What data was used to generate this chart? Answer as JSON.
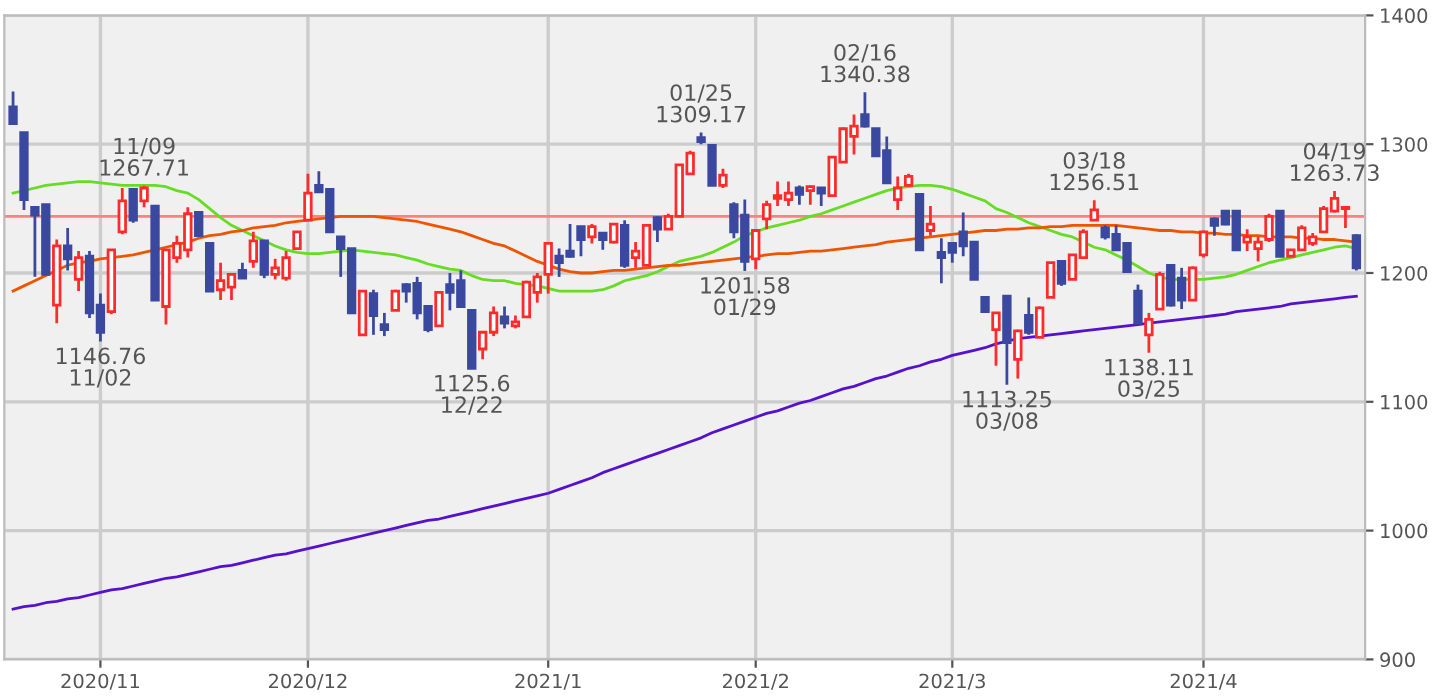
{
  "chart_data": {
    "type": "candlestick",
    "categories": [
      null,
      null,
      null,
      null,
      null,
      null,
      null,
      null,
      "2020/11",
      null,
      null,
      null,
      null,
      null,
      null,
      null,
      null,
      null,
      null,
      null,
      null,
      null,
      null,
      null,
      null,
      null,
      null,
      "2020/12",
      null,
      null,
      null,
      null,
      null,
      null,
      null,
      null,
      null,
      null,
      null,
      null,
      null,
      null,
      null,
      null,
      null,
      null,
      null,
      null,
      null,
      "2021/1",
      null,
      null,
      null,
      null,
      null,
      null,
      null,
      null,
      null,
      null,
      null,
      null,
      null,
      null,
      null,
      null,
      null,
      null,
      "2021/2",
      null,
      null,
      null,
      null,
      null,
      null,
      null,
      null,
      null,
      null,
      null,
      null,
      null,
      null,
      null,
      null,
      null,
      "2021/3",
      null,
      null,
      null,
      null,
      null,
      null,
      null,
      null,
      null,
      null,
      null,
      null,
      null,
      null,
      null,
      null,
      null,
      null,
      null,
      null,
      null,
      null,
      "2021/4",
      null,
      null,
      null,
      null,
      null,
      null,
      null,
      null,
      null,
      null,
      null,
      null,
      null,
      null
    ],
    "ohlc": [
      [
        1329,
        1341,
        1316,
        1316
      ],
      [
        1309,
        1309,
        1249,
        1257
      ],
      [
        1251,
        1251,
        1197,
        1245
      ],
      [
        1253,
        1253,
        1199,
        1199
      ],
      [
        1175,
        1226,
        1161,
        1221
      ],
      [
        1221,
        1235,
        1202,
        1211
      ],
      [
        1195,
        1217,
        1186,
        1212
      ],
      [
        1213,
        1217,
        1165,
        1169
      ],
      [
        1175,
        1184,
        1146.76,
        1154
      ],
      [
        1170,
        1218,
        1168,
        1218
      ],
      [
        1232,
        1266,
        1230,
        1256
      ],
      [
        1265,
        1266,
        1239,
        1241
      ],
      [
        1256,
        1267.71,
        1251,
        1266
      ],
      [
        1252,
        1252,
        1179,
        1179
      ],
      [
        1174,
        1218,
        1160,
        1218
      ],
      [
        1212,
        1229,
        1208,
        1223
      ],
      [
        1218,
        1251,
        1212,
        1246
      ],
      [
        1247,
        1247,
        1228,
        1229
      ],
      [
        1223,
        1223,
        1186,
        1186
      ],
      [
        1187,
        1208,
        1179,
        1194
      ],
      [
        1189,
        1199,
        1179,
        1199
      ],
      [
        1202,
        1208,
        1196,
        1196
      ],
      [
        1209,
        1232,
        1204,
        1225
      ],
      [
        1225,
        1225,
        1196,
        1199
      ],
      [
        1199,
        1211,
        1195,
        1204
      ],
      [
        1196,
        1217,
        1194,
        1212
      ],
      [
        1219,
        1232,
        1219,
        1232
      ],
      [
        1241,
        1277,
        1241,
        1262
      ],
      [
        1268,
        1279,
        1263,
        1263
      ],
      [
        1265,
        1265,
        1232,
        1232
      ],
      [
        1228,
        1228,
        1197,
        1219
      ],
      [
        1219,
        1219,
        1169,
        1169
      ],
      [
        1152,
        1186,
        1152,
        1186
      ],
      [
        1184,
        1187,
        1152,
        1167
      ],
      [
        1160,
        1169,
        1151,
        1156
      ],
      [
        1171,
        1187,
        1171,
        1186
      ],
      [
        1191,
        1192,
        1177,
        1186
      ],
      [
        1192,
        1197,
        1164,
        1169
      ],
      [
        1174,
        1174,
        1154,
        1156
      ],
      [
        1159,
        1186,
        1159,
        1185
      ],
      [
        1191,
        1200,
        1171,
        1185
      ],
      [
        1194,
        1202,
        1174,
        1174
      ],
      [
        1171,
        1171,
        1125.6,
        1126
      ],
      [
        1141,
        1154,
        1133,
        1154
      ],
      [
        1154,
        1174,
        1151,
        1169
      ],
      [
        1166,
        1174,
        1157,
        1161
      ],
      [
        1159,
        1167,
        1157,
        1162
      ],
      [
        1166,
        1194,
        1166,
        1193
      ],
      [
        1185,
        1200,
        1177,
        1197
      ],
      [
        1199,
        1223,
        1184,
        1223
      ],
      [
        1213,
        1219,
        1197,
        1208
      ],
      [
        1217,
        1238,
        1212,
        1213
      ],
      [
        1236,
        1236,
        1213,
        1226
      ],
      [
        1228,
        1238,
        1223,
        1236
      ],
      [
        1231,
        1231,
        1218,
        1226
      ],
      [
        1224,
        1238,
        1223,
        1238
      ],
      [
        1237,
        1241,
        1204,
        1206
      ],
      [
        1212,
        1224,
        1204,
        1217
      ],
      [
        1206,
        1237,
        1206,
        1237
      ],
      [
        1243,
        1244,
        1224,
        1234
      ],
      [
        1234,
        1246,
        1234,
        1244
      ],
      [
        1244,
        1284,
        1244,
        1284
      ],
      [
        1277,
        1295,
        1277,
        1293
      ],
      [
        1305,
        1309.17,
        1300,
        1302
      ],
      [
        1299,
        1300,
        1268,
        1268
      ],
      [
        1268,
        1281,
        1266,
        1276
      ],
      [
        1253,
        1255,
        1227,
        1232
      ],
      [
        1245,
        1257,
        1201.58,
        1209
      ],
      [
        1211,
        1233,
        1203,
        1233
      ],
      [
        1242,
        1256,
        1234,
        1253
      ],
      [
        1258,
        1271,
        1252,
        1260
      ],
      [
        1257,
        1271,
        1252,
        1262
      ],
      [
        1266,
        1268,
        1253,
        1261
      ],
      [
        1264,
        1268,
        1253,
        1267
      ],
      [
        1266,
        1266,
        1252,
        1262
      ],
      [
        1260,
        1290,
        1260,
        1290
      ],
      [
        1286,
        1313,
        1286,
        1312
      ],
      [
        1306,
        1323,
        1292,
        1314
      ],
      [
        1323,
        1340.38,
        1313,
        1314
      ],
      [
        1312,
        1312,
        1291,
        1291
      ],
      [
        1295,
        1306,
        1270,
        1270
      ],
      [
        1257,
        1275,
        1249,
        1266
      ],
      [
        1268,
        1277,
        1267,
        1275
      ],
      [
        1261,
        1261,
        1218,
        1218
      ],
      [
        1233,
        1252,
        1229,
        1238
      ],
      [
        1216,
        1227,
        1192,
        1212
      ],
      [
        1223,
        1223,
        1208,
        1216
      ],
      [
        1232,
        1247,
        1213,
        1221
      ],
      [
        1224,
        1224,
        1195,
        1195
      ],
      [
        1181,
        1181,
        1170,
        1170
      ],
      [
        1156,
        1169,
        1128,
        1169
      ],
      [
        1182,
        1182,
        1113.25,
        1146
      ],
      [
        1133,
        1156,
        1118,
        1155
      ],
      [
        1167,
        1181,
        1152,
        1154
      ],
      [
        1150,
        1174,
        1150,
        1173
      ],
      [
        1181,
        1208,
        1181,
        1208
      ],
      [
        1209,
        1209,
        1190,
        1192
      ],
      [
        1195,
        1214,
        1195,
        1214
      ],
      [
        1212,
        1234,
        1211,
        1232
      ],
      [
        1241,
        1256.51,
        1241,
        1249
      ],
      [
        1235,
        1237,
        1226,
        1228
      ],
      [
        1230,
        1237,
        1217,
        1218
      ],
      [
        1223,
        1223,
        1201,
        1201
      ],
      [
        1186,
        1191,
        1161,
        1161
      ],
      [
        1152,
        1169,
        1138.11,
        1164
      ],
      [
        1172,
        1201,
        1172,
        1199
      ],
      [
        1206,
        1207,
        1174,
        1175
      ],
      [
        1196,
        1204,
        1172,
        1179
      ],
      [
        1179,
        1205,
        1179,
        1204
      ],
      [
        1214,
        1233,
        1212,
        1232
      ],
      [
        1242,
        1243,
        1229,
        1237
      ],
      [
        1248,
        1249,
        1237,
        1238
      ],
      [
        1248,
        1248,
        1218,
        1218
      ],
      [
        1224,
        1234,
        1217,
        1228
      ],
      [
        1219,
        1228,
        1209,
        1224
      ],
      [
        1226,
        1246,
        1224,
        1244
      ],
      [
        1248,
        1249,
        1213,
        1213
      ],
      [
        1213,
        1218,
        1213,
        1218
      ],
      [
        1218,
        1237,
        1217,
        1235
      ],
      [
        1223,
        1231,
        1221,
        1228
      ],
      [
        1232,
        1252,
        1232,
        1250
      ],
      [
        1248,
        1263.73,
        1247,
        1258
      ],
      [
        1250,
        1251,
        1235,
        1251
      ],
      [
        1229,
        1230,
        1202,
        1204
      ]
    ],
    "colors": [
      "#3a48a0",
      "#3a48a0",
      "#3a48a0",
      "#3a48a0",
      "#ff2a2a",
      "#3a48a0",
      "#ff2a2a",
      "#3a48a0",
      "#3a48a0",
      "#ff2a2a",
      "#ff2a2a",
      "#3a48a0",
      "#ff2a2a",
      "#3a48a0",
      "#ff2a2a",
      "#ff2a2a",
      "#ff2a2a",
      "#3a48a0",
      "#3a48a0",
      "#ff2a2a",
      "#ff2a2a",
      "#3a48a0",
      "#ff2a2a",
      "#3a48a0",
      "#ff2a2a",
      "#ff2a2a",
      "#ff2a2a",
      "#ff2a2a",
      "#3a48a0",
      "#3a48a0",
      "#3a48a0",
      "#3a48a0",
      "#ff2a2a",
      "#3a48a0",
      "#3a48a0",
      "#ff2a2a",
      "#3a48a0",
      "#3a48a0",
      "#3a48a0",
      "#ff2a2a",
      "#3a48a0",
      "#3a48a0",
      "#3a48a0",
      "#ff2a2a",
      "#ff2a2a",
      "#3a48a0",
      "#ff2a2a",
      "#ff2a2a",
      "#ff2a2a",
      "#ff2a2a",
      "#3a48a0",
      "#3a48a0",
      "#3a48a0",
      "#ff2a2a",
      "#3a48a0",
      "#ff2a2a",
      "#3a48a0",
      "#ff2a2a",
      "#ff2a2a",
      "#3a48a0",
      "#ff2a2a",
      "#ff2a2a",
      "#ff2a2a",
      "#3a48a0",
      "#3a48a0",
      "#ff2a2a",
      "#3a48a0",
      "#3a48a0",
      "#ff2a2a",
      "#ff2a2a",
      "#ff2a2a",
      "#ff2a2a",
      "#3a48a0",
      "#ff2a2a",
      "#3a48a0",
      "#ff2a2a",
      "#ff2a2a",
      "#ff2a2a",
      "#3a48a0",
      "#3a48a0",
      "#3a48a0",
      "#ff2a2a",
      "#ff2a2a",
      "#3a48a0",
      "#ff2a2a",
      "#3a48a0",
      "#3a48a0",
      "#3a48a0",
      "#3a48a0",
      "#3a48a0",
      "#ff2a2a",
      "#3a48a0",
      "#ff2a2a",
      "#3a48a0",
      "#ff2a2a",
      "#ff2a2a",
      "#3a48a0",
      "#ff2a2a",
      "#ff2a2a",
      "#ff2a2a",
      "#3a48a0",
      "#3a48a0",
      "#3a48a0",
      "#3a48a0",
      "#ff2a2a",
      "#ff2a2a",
      "#3a48a0",
      "#3a48a0",
      "#ff2a2a",
      "#ff2a2a",
      "#3a48a0",
      "#3a48a0",
      "#3a48a0",
      "#ff2a2a",
      "#ff2a2a",
      "#ff2a2a",
      "#3a48a0",
      "#ff2a2a",
      "#ff2a2a",
      "#ff2a2a",
      "#ff2a2a",
      "#ff2a2a",
      "#ff2a2a",
      "#3a48a0"
    ],
    "series": [
      {
        "type": "line",
        "color": "#66dd22",
        "values": [
          1262,
          1264,
          1266,
          1268,
          1269,
          1270,
          1271,
          1271,
          1270,
          1269,
          1268,
          1268,
          1268,
          1268,
          1267,
          1264,
          1262,
          1257,
          1250,
          1243,
          1237,
          1233,
          1229,
          1225,
          1221,
          1218,
          1216,
          1215,
          1215,
          1216,
          1217,
          1218,
          1217,
          1216,
          1215,
          1214,
          1212,
          1210,
          1207,
          1205,
          1203,
          1202,
          1198,
          1195,
          1194,
          1194,
          1192,
          1191,
          1190,
          1188,
          1186,
          1186,
          1186,
          1186,
          1187,
          1190,
          1194,
          1196,
          1198,
          1201,
          1205,
          1209,
          1211,
          1213,
          1216,
          1220,
          1224,
          1229,
          1232,
          1235,
          1237,
          1239,
          1241,
          1244,
          1246,
          1249,
          1252,
          1255,
          1258,
          1261,
          1264,
          1266,
          1267,
          1268,
          1268,
          1267,
          1265,
          1262,
          1259,
          1256,
          1250,
          1247,
          1243,
          1239,
          1236,
          1233,
          1230,
          1228,
          1224,
          1220,
          1218,
          1214,
          1210,
          1205,
          1200,
          1197,
          1195,
          1195,
          1195,
          1195,
          1196,
          1197,
          1199,
          1202,
          1205,
          1208,
          1210,
          1212,
          1214,
          1216,
          1218,
          1220,
          1221,
          1219
        ]
      },
      {
        "type": "line",
        "color": "#ee5500",
        "values": [
          1186,
          1190,
          1194,
          1198,
          1202,
          1206,
          1208,
          1209,
          1211,
          1212,
          1213,
          1214,
          1216,
          1218,
          1220,
          1222,
          1224,
          1227,
          1229,
          1230,
          1232,
          1233,
          1235,
          1236,
          1237,
          1239,
          1240,
          1241,
          1242,
          1243,
          1244,
          1244,
          1244,
          1244,
          1243,
          1242,
          1241,
          1240,
          1238,
          1236,
          1234,
          1232,
          1229,
          1226,
          1223,
          1221,
          1217,
          1213,
          1209,
          1206,
          1203,
          1201,
          1200,
          1200,
          1201,
          1202,
          1202,
          1203,
          1204,
          1205,
          1206,
          1206,
          1207,
          1208,
          1209,
          1210,
          1211,
          1212,
          1213,
          1214,
          1215,
          1215,
          1216,
          1217,
          1217,
          1218,
          1219,
          1220,
          1221,
          1222,
          1224,
          1225,
          1226,
          1227,
          1228,
          1229,
          1230,
          1231,
          1232,
          1233,
          1233,
          1234,
          1234,
          1235,
          1235,
          1236,
          1236,
          1237,
          1237,
          1237,
          1237,
          1237,
          1236,
          1235,
          1234,
          1233,
          1233,
          1232,
          1232,
          1231,
          1231,
          1230,
          1230,
          1229,
          1229,
          1228,
          1228,
          1228,
          1227,
          1227,
          1226,
          1226,
          1225,
          1224
        ]
      },
      {
        "type": "line",
        "color": "#5511cc",
        "values": [
          939,
          941,
          942,
          944,
          945,
          947,
          948,
          950,
          952,
          954,
          955,
          957,
          959,
          961,
          963,
          964,
          966,
          968,
          970,
          972,
          973,
          975,
          977,
          979,
          981,
          982,
          984,
          986,
          988,
          990,
          992,
          994,
          996,
          998,
          1000,
          1002,
          1004,
          1006,
          1008,
          1009,
          1011,
          1013,
          1015,
          1017,
          1019,
          1021,
          1023,
          1025,
          1027,
          1029,
          1032,
          1035,
          1038,
          1041,
          1045,
          1048,
          1051,
          1054,
          1057,
          1060,
          1063,
          1066,
          1069,
          1072,
          1076,
          1079,
          1082,
          1085,
          1088,
          1091,
          1093,
          1096,
          1099,
          1101,
          1104,
          1107,
          1110,
          1112,
          1115,
          1118,
          1120,
          1123,
          1126,
          1128,
          1131,
          1133,
          1136,
          1138,
          1140,
          1142,
          1145,
          1147,
          1149,
          1150,
          1151,
          1152,
          1153,
          1154,
          1155,
          1156,
          1157,
          1158,
          1159,
          1160,
          1161,
          1162,
          1163,
          1164,
          1165,
          1166,
          1167,
          1168,
          1170,
          1171,
          1172,
          1173,
          1174,
          1176,
          1177,
          1178,
          1179,
          1180,
          1181,
          1182
        ]
      }
    ],
    "ref_lines": [
      {
        "axis": "y",
        "value": 1244,
        "color": "#ff8080"
      }
    ],
    "ylim": [
      900,
      1400
    ],
    "yticks": [
      900,
      1000,
      1100,
      1200,
      1300,
      1400
    ],
    "grid": true,
    "annotations": [
      {
        "text": "11/09\n1267.71",
        "y": 1267.71
      },
      {
        "text": "1146.76\n11/02",
        "y": 1146.76
      },
      {
        "text": "1125.6\n12/22",
        "y": 1125.6
      },
      {
        "text": "01/25\n1309.17",
        "y": 1309.17
      },
      {
        "text": "1201.58\n01/29",
        "y": 1201.58
      },
      {
        "text": "02/16\n1340.38",
        "y": 1340.38
      },
      {
        "text": "1113.25\n03/08",
        "y": 1113.25
      },
      {
        "text": "03/18\n1256.51",
        "y": 1256.51
      },
      {
        "text": "1138.11\n03/25",
        "y": 1138.11
      },
      {
        "text": "04/19\n1263.73",
        "y": 1263.73
      }
    ]
  }
}
